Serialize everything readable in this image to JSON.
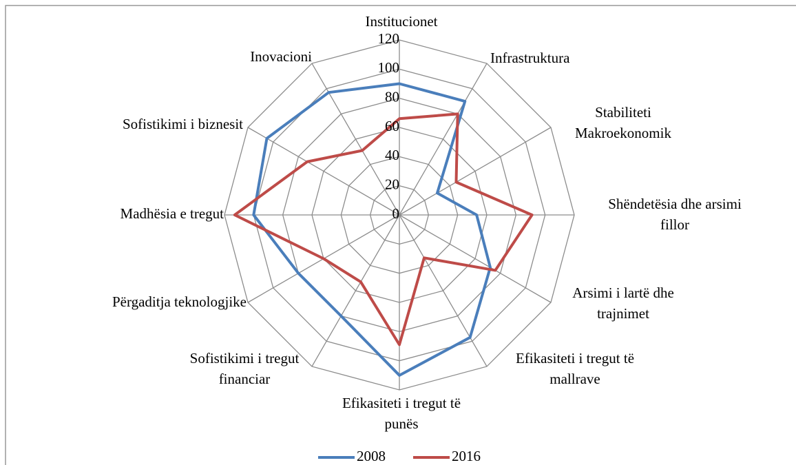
{
  "chart_data": {
    "type": "radar",
    "categories": [
      "Institucionet",
      "Infrastruktura",
      "Stabiliteti Makroekonomik",
      "Shëndetësia dhe arsimi fillor",
      "Arsimi i lartë dhe trajnimet",
      "Efikasiteti i tregut të mallrave",
      "Efikasiteti i tregut të punës",
      "Sofistikimi i tregut financiar",
      "Përgaditja teknologjike",
      "Madhësia e tregut",
      "Sofistikimi i biznesit",
      "Inovacioni"
    ],
    "series": [
      {
        "name": "2008",
        "color": "#4a7ebb",
        "values": [
          90,
          90,
          30,
          53,
          72,
          97,
          110,
          80,
          80,
          100,
          105,
          97
        ]
      },
      {
        "name": "2016",
        "color": "#be4b48",
        "values": [
          66,
          80,
          45,
          91,
          76,
          34,
          89,
          53,
          60,
          113,
          73,
          51
        ]
      }
    ],
    "ylim": [
      0,
      120
    ],
    "yticks": [
      0,
      20,
      40,
      60,
      80,
      100,
      120
    ],
    "grid": true,
    "legend": "bottom"
  }
}
